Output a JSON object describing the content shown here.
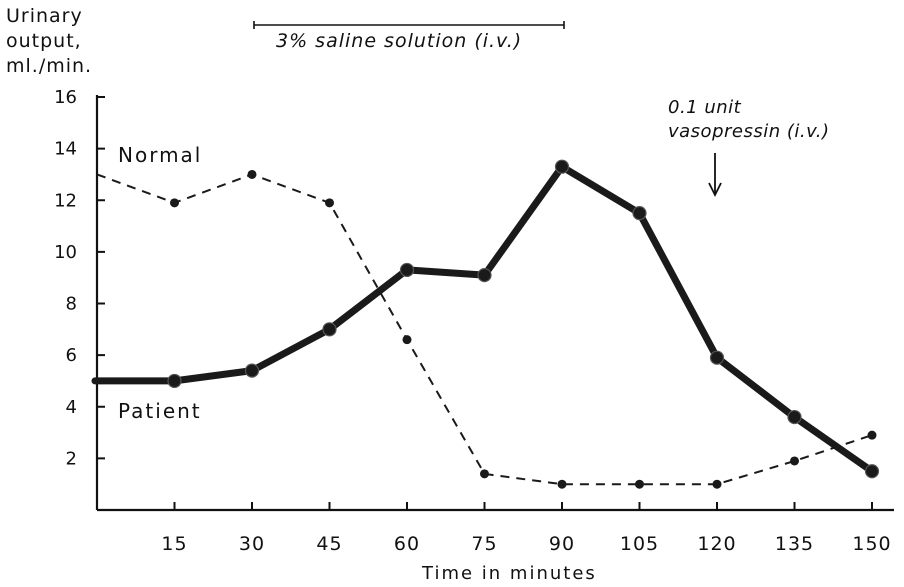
{
  "chart_data": {
    "type": "line",
    "title": "",
    "ylabel_lines": [
      "Urinary",
      "output,",
      "ml./min."
    ],
    "xlabel": "Time in minutes",
    "ylim": [
      0,
      16
    ],
    "xlim": [
      0,
      150
    ],
    "x_ticks": [
      15,
      30,
      45,
      60,
      75,
      90,
      105,
      120,
      135,
      150
    ],
    "y_ticks": [
      2,
      4,
      6,
      8,
      10,
      12,
      14,
      16
    ],
    "grid": false,
    "series": [
      {
        "name": "Normal",
        "style": "dashed",
        "color": "#1a1a1a",
        "x": [
          0,
          15,
          30,
          45,
          60,
          75,
          90,
          105,
          120,
          135,
          150
        ],
        "y": [
          13.0,
          11.9,
          13.0,
          11.9,
          6.6,
          1.4,
          1.0,
          1.0,
          1.0,
          1.9,
          2.9
        ]
      },
      {
        "name": "Patient",
        "style": "solid-thick",
        "color": "#1a1a1a",
        "x": [
          0,
          15,
          30,
          45,
          60,
          75,
          90,
          105,
          120,
          135,
          150
        ],
        "y": [
          5.0,
          5.0,
          5.4,
          7.0,
          9.3,
          9.1,
          13.3,
          11.5,
          5.9,
          3.6,
          1.5
        ]
      }
    ],
    "annotations": {
      "saline": {
        "text": "3% saline solution (i.v.)",
        "x_start": 30,
        "x_end": 90
      },
      "vasopressin": {
        "lines": [
          "0.1 unit",
          "vasopressin (i.v.)"
        ],
        "x": 120
      }
    }
  }
}
